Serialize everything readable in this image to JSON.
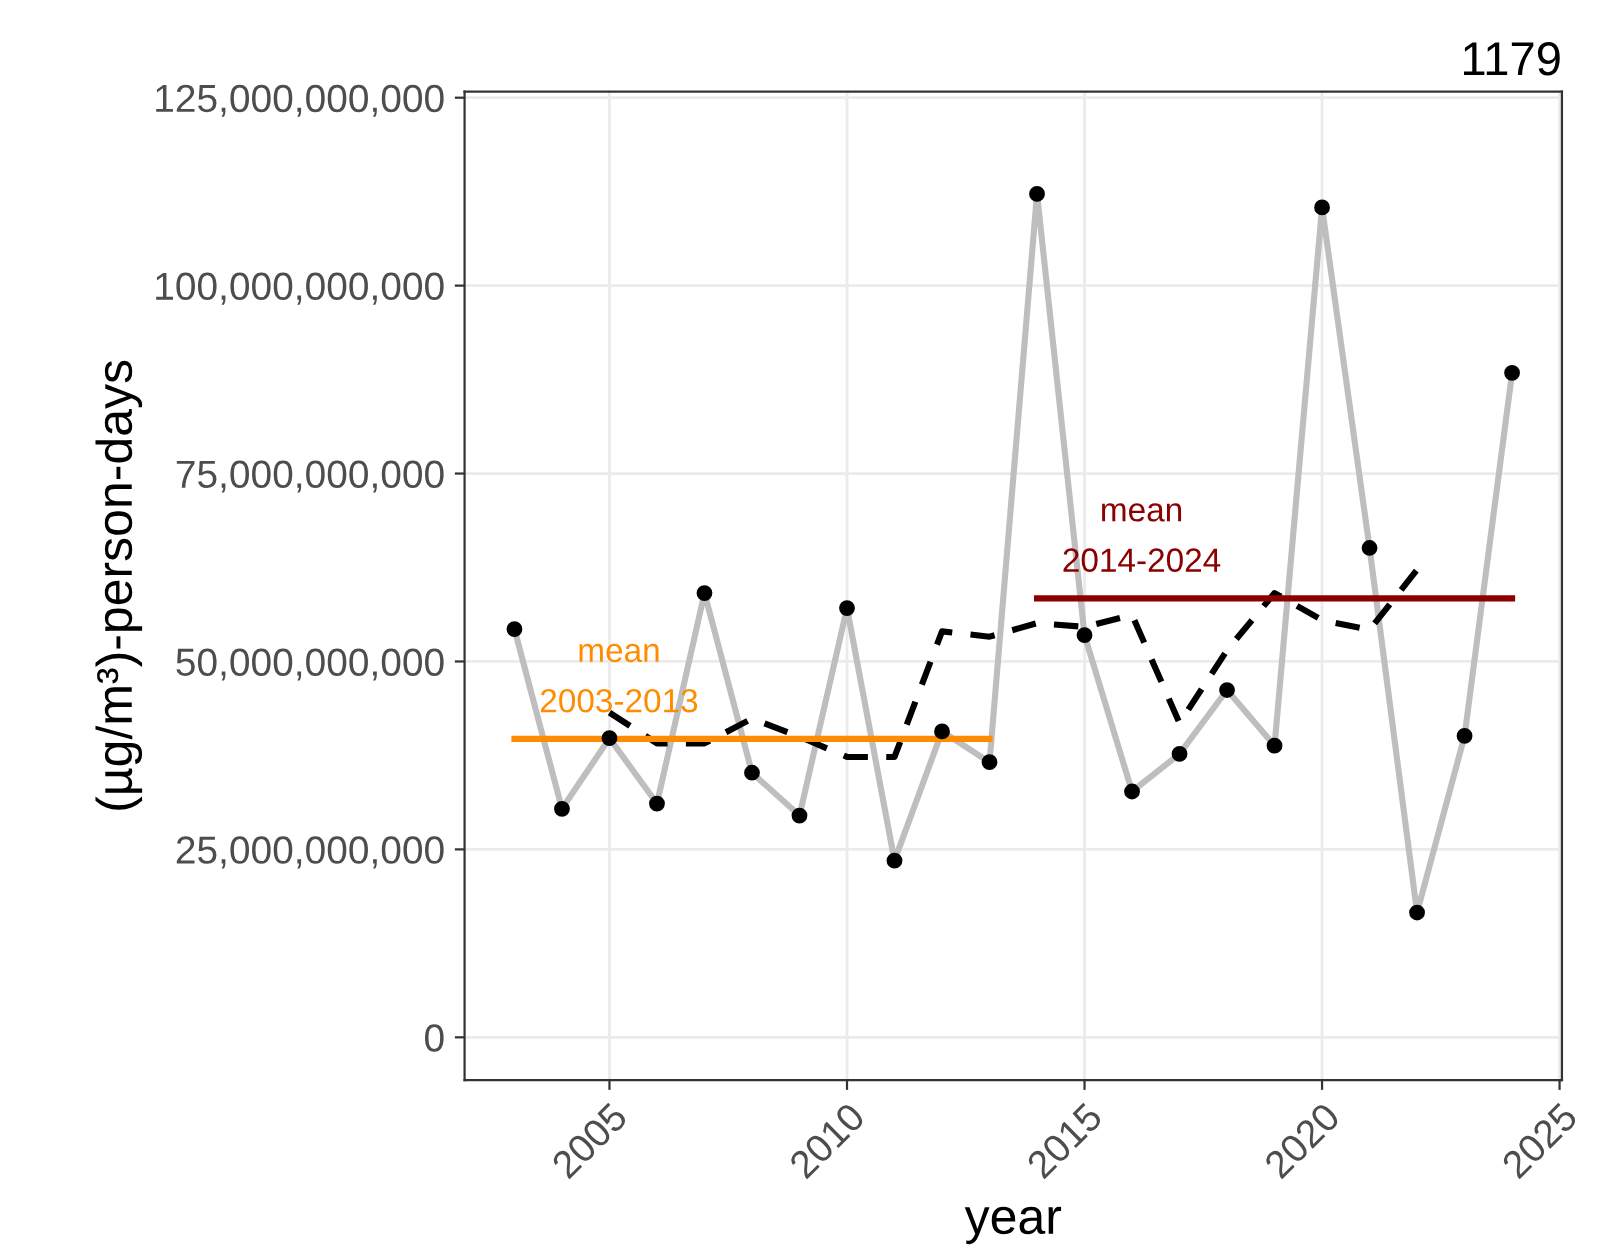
{
  "chart_data": {
    "type": "line",
    "title": "1179",
    "xlabel": "year",
    "ylabel": "(µg/m³)-person-days",
    "x": [
      2003,
      2004,
      2005,
      2006,
      2007,
      2008,
      2009,
      2010,
      2011,
      2012,
      2013,
      2014,
      2015,
      2016,
      2017,
      2018,
      2019,
      2020,
      2021,
      2022,
      2023,
      2024
    ],
    "series": [
      {
        "color": "#bebebe",
        "line_style": "solid",
        "values": [
          54300000000.0,
          30400000000.0,
          39800000000.0,
          31100000000.0,
          59100000000.0,
          35200000000.0,
          29500000000.0,
          57100000000.0,
          23500000000.0,
          40700000000.0,
          36600000000.0,
          112200000000.0,
          53500000000.0,
          32700000000.0,
          37700000000.0,
          46200000000.0,
          38800000000.0,
          110400000000.0,
          65100000000.0,
          16600000000.0,
          40100000000.0,
          88400000000.0
        ]
      },
      {
        "type": "scatter",
        "color": "#000000",
        "marker": "circle",
        "values": [
          54300000000.0,
          30400000000.0,
          39800000000.0,
          31100000000.0,
          59100000000.0,
          35200000000.0,
          29500000000.0,
          57100000000.0,
          23500000000.0,
          40700000000.0,
          36600000000.0,
          112200000000.0,
          53500000000.0,
          32700000000.0,
          37700000000.0,
          46200000000.0,
          38800000000.0,
          110400000000.0,
          65100000000.0,
          16600000000.0,
          40100000000.0,
          88400000000.0
        ]
      },
      {
        "type": "line",
        "color": "#000000",
        "line_style": "dashed",
        "x": [
          2005,
          2006,
          2007,
          2008,
          2009,
          2010,
          2011,
          2012,
          2013,
          2014,
          2015,
          2016,
          2017,
          2018,
          2019,
          2020,
          2021,
          2022
        ],
        "values": [
          43200000000.0,
          39100000000.0,
          39100000000.0,
          42400000000.0,
          40000000000.0,
          37300000000.0,
          37300000000.0,
          54000000000.0,
          53300000000.0,
          55100000000.0,
          54600000000.0,
          56200000000.0,
          41800000000.0,
          51500000000.0,
          59100000000.0,
          55500000000.0,
          54200000000.0,
          62200000000.0
        ]
      },
      {
        "type": "line",
        "color": "#ff8c00",
        "line_style": "solid",
        "x": [
          2003,
          2013
        ],
        "values": [
          39700000000.0,
          39700000000.0
        ]
      },
      {
        "type": "line",
        "color": "#8b0000",
        "line_style": "solid",
        "x": [
          2014,
          2024
        ],
        "values": [
          58400000000.0,
          58400000000.0
        ]
      }
    ],
    "annotations": [
      "mean\n2003-2013",
      "mean\n2014-2024"
    ],
    "xlim": [
      2001.95,
      2025.05
    ],
    "xticks": [
      2005,
      2010,
      2015,
      2020,
      2025
    ],
    "ylim": [
      -5700000000.0,
      125800000000.0
    ],
    "yticks": [
      {
        "value": 0,
        "label": "0"
      },
      {
        "value": 25000000000.0,
        "label": "25,000,000,000"
      },
      {
        "value": 50000000000.0,
        "label": "50,000,000,000"
      },
      {
        "value": 75000000000.0,
        "label": "75,000,000,000"
      },
      {
        "value": 100000000000.0,
        "label": "100,000,000,000"
      },
      {
        "value": 125000000000.0,
        "label": "125,000,000,000"
      }
    ],
    "grid": true
  }
}
